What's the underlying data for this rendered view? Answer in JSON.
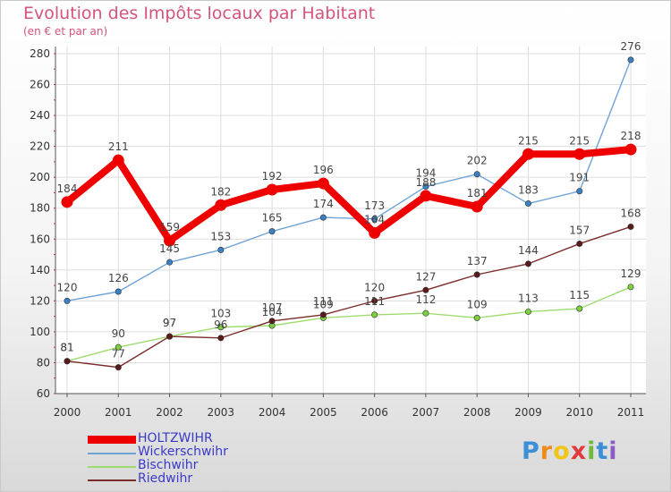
{
  "title": "Evolution des Impôts locaux par Habitant",
  "subtitle": "(en € et par an)",
  "chart_data": {
    "type": "line",
    "title": "Evolution des Impôts locaux par Habitant",
    "subtitle": "(en € et par an)",
    "x": [
      "2000",
      "2001",
      "2002",
      "2003",
      "2004",
      "2005",
      "2006",
      "2007",
      "2008",
      "2009",
      "2010",
      "2011"
    ],
    "ylim": [
      60,
      280
    ],
    "yticks": [
      60,
      80,
      100,
      120,
      140,
      160,
      180,
      200,
      220,
      240,
      260,
      280
    ],
    "grid": true,
    "legend_position": "bottom-left",
    "series": [
      {
        "name": "Wickerschwihr",
        "color": "#6fa3d6",
        "marker": "#3b7fc4",
        "values": [
          120,
          126,
          145,
          153,
          165,
          174,
          173,
          194,
          202,
          183,
          191,
          276
        ],
        "labels": [
          "120",
          "126",
          "145",
          "153",
          "165",
          "174",
          "173",
          "194",
          "202",
          "183",
          "191",
          "276"
        ]
      },
      {
        "name": "Bischwihr",
        "color": "#9fdc70",
        "marker": "#7ccf3d",
        "values": [
          81,
          90,
          97,
          103,
          104,
          109,
          111,
          112,
          109,
          113,
          115,
          129
        ],
        "labels": [
          "81",
          "90",
          "97",
          "103",
          "104",
          "109",
          "111",
          "112",
          "109",
          "113",
          "115",
          "129"
        ]
      },
      {
        "name": "Riedwihr",
        "color": "#7a2b2b",
        "marker": "#5a1a1a",
        "values": [
          81,
          77,
          97,
          96,
          107,
          111,
          120,
          127,
          137,
          144,
          157,
          168
        ],
        "labels": [
          "81",
          "77",
          "97",
          "96",
          "107",
          "111",
          "120",
          "127",
          "137",
          "144",
          "157",
          "168"
        ]
      },
      {
        "name": "HOLTZWIHR",
        "color": "#ee0000",
        "marker": "#ee0000",
        "values": [
          184,
          211,
          159,
          182,
          192,
          196,
          164,
          188,
          181,
          215,
          215,
          218
        ],
        "labels": [
          "184",
          "211",
          "159",
          "182",
          "192",
          "196",
          "164",
          "188",
          "181",
          "215",
          "215",
          "218"
        ]
      }
    ]
  },
  "legend": [
    {
      "label": "HOLTZWIHR",
      "color": "#ee0000",
      "thick": true
    },
    {
      "label": "Wickerschwihr",
      "color": "#6fa3d6",
      "thick": false
    },
    {
      "label": "Bischwihr",
      "color": "#9fdc70",
      "thick": false
    },
    {
      "label": "Riedwihr",
      "color": "#7a2b2b",
      "thick": false
    }
  ],
  "logo": {
    "letters": [
      "P",
      "r",
      "o",
      "x",
      "i",
      "t",
      "i"
    ],
    "colors": [
      "#3b8fd6",
      "#f08a1c",
      "#f0c419",
      "#e23b3b",
      "#6dbb3c",
      "#3b8fd6",
      "#8a5cc4"
    ]
  }
}
